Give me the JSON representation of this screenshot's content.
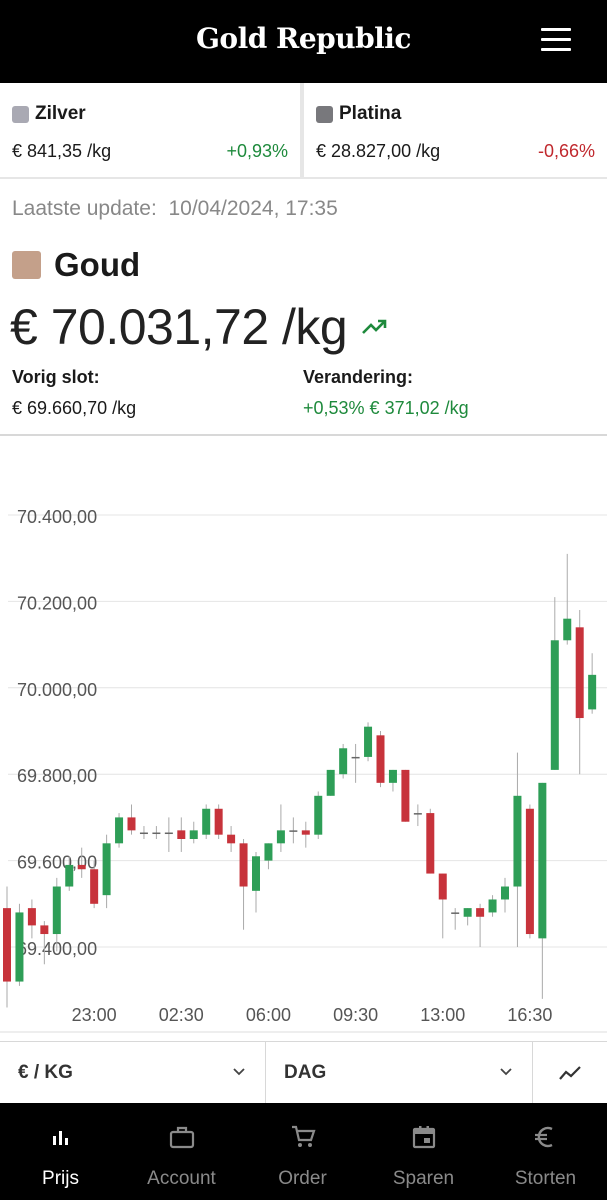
{
  "header": {
    "brand": "Gold Republic",
    "menu_icon": "hamburger-menu-icon"
  },
  "metals": [
    {
      "name": "Zilver",
      "price": "€ 841,35 /kg",
      "change": "+0,93%",
      "swatch_color": "#a9a9b3",
      "direction": "up"
    },
    {
      "name": "Platina",
      "price": "€ 28.827,00 /kg",
      "change": "-0,66%",
      "swatch_color": "#78787c",
      "direction": "down"
    }
  ],
  "update": {
    "label": "Laatste update:",
    "value": "10/04/2024, 17:35"
  },
  "gold": {
    "name": "Goud",
    "swatch_color": "#c4a08a",
    "price": "€ 70.031,72 /kg",
    "trend_icon": "trending-up-icon",
    "prev_close_label": "Vorig slot:",
    "prev_close_value": "€ 69.660,70 /kg",
    "change_label": "Verandering:",
    "change_value": "+0,53% € 371,02 /kg"
  },
  "chart_data": {
    "type": "candlestick",
    "title": "",
    "xlabel": "",
    "ylabel": "",
    "ylim": [
      69300,
      70520
    ],
    "y_ticks": [
      {
        "value": 69400,
        "label": "69.400,00"
      },
      {
        "value": 69600,
        "label": "69.600,00"
      },
      {
        "value": 69800,
        "label": "69.800,00"
      },
      {
        "value": 70000,
        "label": "70.000,00"
      },
      {
        "value": 70200,
        "label": "70.200,00"
      },
      {
        "value": 70400,
        "label": "70.400,00"
      }
    ],
    "x_ticks": [
      {
        "index": 7,
        "label": "23:00"
      },
      {
        "index": 14,
        "label": "02:30"
      },
      {
        "index": 21,
        "label": "06:00"
      },
      {
        "index": 28,
        "label": "09:30"
      },
      {
        "index": 35,
        "label": "13:00"
      },
      {
        "index": 42,
        "label": "16:30"
      }
    ],
    "colors": {
      "up": "#2e9e57",
      "down": "#c7333b"
    },
    "candles": [
      {
        "o": 69490,
        "h": 69540,
        "l": 69260,
        "c": 69320
      },
      {
        "o": 69320,
        "h": 69500,
        "l": 69310,
        "c": 69480
      },
      {
        "o": 69490,
        "h": 69510,
        "l": 69420,
        "c": 69450
      },
      {
        "o": 69450,
        "h": 69460,
        "l": 69360,
        "c": 69430
      },
      {
        "o": 69430,
        "h": 69560,
        "l": 69390,
        "c": 69540
      },
      {
        "o": 69540,
        "h": 69610,
        "l": 69530,
        "c": 69590
      },
      {
        "o": 69590,
        "h": 69630,
        "l": 69560,
        "c": 69580
      },
      {
        "o": 69580,
        "h": 69600,
        "l": 69490,
        "c": 69500
      },
      {
        "o": 69520,
        "h": 69660,
        "l": 69490,
        "c": 69640
      },
      {
        "o": 69640,
        "h": 69710,
        "l": 69630,
        "c": 69700
      },
      {
        "o": 69700,
        "h": 69730,
        "l": 69660,
        "c": 69670
      },
      {
        "o": 69665,
        "h": 69680,
        "l": 69650,
        "c": 69665
      },
      {
        "o": 69665,
        "h": 69680,
        "l": 69650,
        "c": 69665
      },
      {
        "o": 69665,
        "h": 69700,
        "l": 69620,
        "c": 69665
      },
      {
        "o": 69670,
        "h": 69700,
        "l": 69620,
        "c": 69650
      },
      {
        "o": 69650,
        "h": 69690,
        "l": 69640,
        "c": 69670
      },
      {
        "o": 69660,
        "h": 69730,
        "l": 69650,
        "c": 69720
      },
      {
        "o": 69720,
        "h": 69730,
        "l": 69650,
        "c": 69660
      },
      {
        "o": 69660,
        "h": 69680,
        "l": 69620,
        "c": 69640
      },
      {
        "o": 69640,
        "h": 69650,
        "l": 69440,
        "c": 69540
      },
      {
        "o": 69530,
        "h": 69620,
        "l": 69480,
        "c": 69610
      },
      {
        "o": 69600,
        "h": 69640,
        "l": 69580,
        "c": 69640
      },
      {
        "o": 69640,
        "h": 69730,
        "l": 69620,
        "c": 69670
      },
      {
        "o": 69670,
        "h": 69700,
        "l": 69640,
        "c": 69670
      },
      {
        "o": 69670,
        "h": 69690,
        "l": 69630,
        "c": 69660
      },
      {
        "o": 69660,
        "h": 69760,
        "l": 69650,
        "c": 69750
      },
      {
        "o": 69750,
        "h": 69810,
        "l": 69750,
        "c": 69810
      },
      {
        "o": 69800,
        "h": 69870,
        "l": 69790,
        "c": 69860
      },
      {
        "o": 69840,
        "h": 69870,
        "l": 69780,
        "c": 69840
      },
      {
        "o": 69840,
        "h": 69920,
        "l": 69830,
        "c": 69910
      },
      {
        "o": 69890,
        "h": 69900,
        "l": 69770,
        "c": 69780
      },
      {
        "o": 69780,
        "h": 69810,
        "l": 69760,
        "c": 69810
      },
      {
        "o": 69810,
        "h": 69810,
        "l": 69690,
        "c": 69690
      },
      {
        "o": 69710,
        "h": 69730,
        "l": 69680,
        "c": 69710
      },
      {
        "o": 69710,
        "h": 69720,
        "l": 69570,
        "c": 69570
      },
      {
        "o": 69570,
        "h": 69570,
        "l": 69420,
        "c": 69510
      },
      {
        "o": 69480,
        "h": 69490,
        "l": 69440,
        "c": 69480
      },
      {
        "o": 69470,
        "h": 69490,
        "l": 69450,
        "c": 69490
      },
      {
        "o": 69490,
        "h": 69500,
        "l": 69400,
        "c": 69470
      },
      {
        "o": 69480,
        "h": 69520,
        "l": 69470,
        "c": 69510
      },
      {
        "o": 69510,
        "h": 69560,
        "l": 69480,
        "c": 69540
      },
      {
        "o": 69540,
        "h": 69850,
        "l": 69400,
        "c": 69750
      },
      {
        "o": 69720,
        "h": 69730,
        "l": 69420,
        "c": 69430
      },
      {
        "o": 69420,
        "h": 69780,
        "l": 69280,
        "c": 69780
      },
      {
        "o": 69810,
        "h": 70210,
        "l": 69810,
        "c": 70110
      },
      {
        "o": 70110,
        "h": 70310,
        "l": 70100,
        "c": 70160
      },
      {
        "o": 70140,
        "h": 70180,
        "l": 69800,
        "c": 69930
      },
      {
        "o": 69950,
        "h": 70080,
        "l": 69940,
        "c": 70030
      }
    ]
  },
  "controls": {
    "unit": "€ / KG",
    "period": "DAG",
    "chart_icon": "line-chart-icon"
  },
  "nav": [
    {
      "label": "Prijs",
      "icon": "bar-chart-icon",
      "active": true
    },
    {
      "label": "Account",
      "icon": "briefcase-icon",
      "active": false
    },
    {
      "label": "Order",
      "icon": "cart-icon",
      "active": false
    },
    {
      "label": "Sparen",
      "icon": "calendar-icon",
      "active": false
    },
    {
      "label": "Storten",
      "icon": "euro-icon",
      "active": false
    }
  ]
}
